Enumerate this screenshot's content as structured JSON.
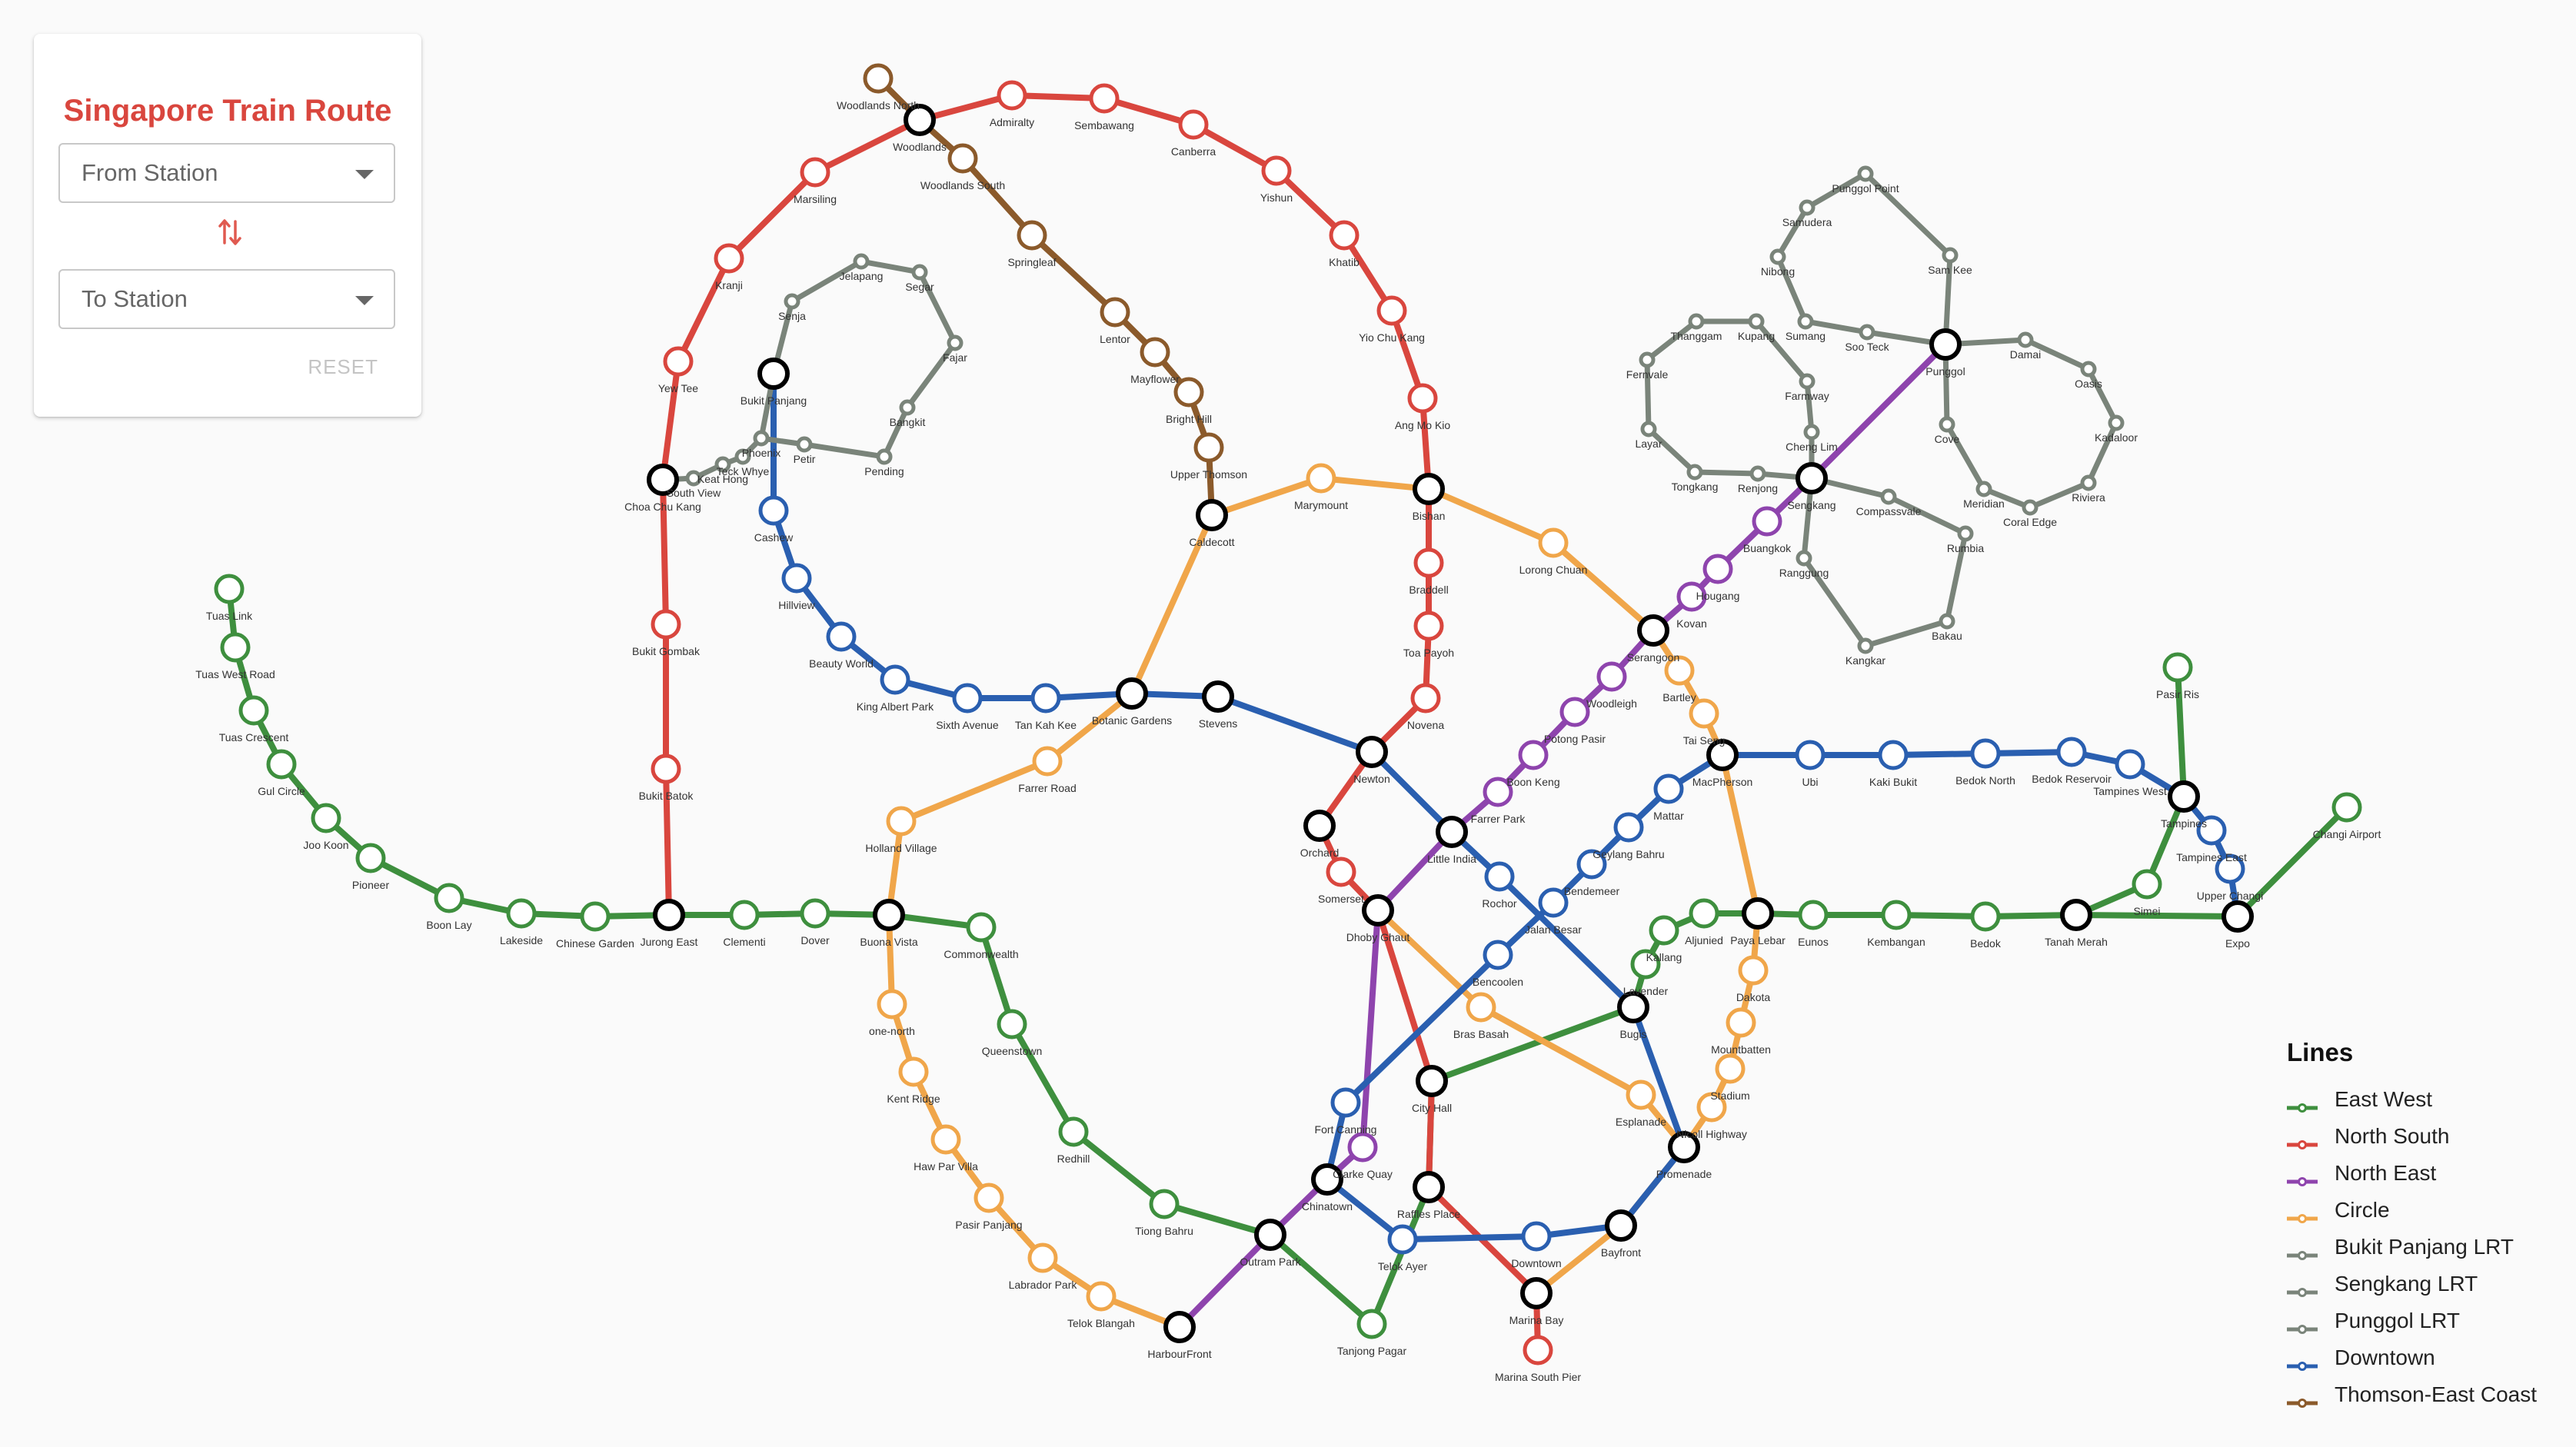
{
  "panel": {
    "title": "Singapore Train Route",
    "from_placeholder": "From Station",
    "to_placeholder": "To Station",
    "reset_label": "RESET"
  },
  "legend": {
    "title": "Lines",
    "items": [
      {
        "label": "East West",
        "color": "#3e8f3e"
      },
      {
        "label": "North South",
        "color": "#d9463e"
      },
      {
        "label": "North East",
        "color": "#8e44ad"
      },
      {
        "label": "Circle",
        "color": "#f0a64a"
      },
      {
        "label": "Bukit Panjang LRT",
        "color": "#7a847a"
      },
      {
        "label": "Sengkang LRT",
        "color": "#7a847a"
      },
      {
        "label": "Punggol LRT",
        "color": "#7a847a"
      },
      {
        "label": "Downtown",
        "color": "#2a5fb0"
      },
      {
        "label": "Thomson-East Coast",
        "color": "#8b5a2b"
      }
    ]
  },
  "stations": [
    {
      "name": "Tuas Link",
      "label": "Tuas Link",
      "line": "East West"
    },
    {
      "name": "Tuas West Road",
      "label": "Tuas West Road",
      "line": "East West"
    },
    {
      "name": "Tuas Crescent",
      "label": "Tuas Crescent",
      "line": "East West"
    },
    {
      "name": "Gul Circle",
      "label": "Gul Circle",
      "line": "East West"
    },
    {
      "name": "Joo Koon",
      "label": "Joo Koon",
      "line": "East West"
    },
    {
      "name": "Pioneer",
      "label": "Pioneer",
      "line": "East West"
    },
    {
      "name": "Boon Lay",
      "label": "Boon Lay",
      "line": "East West"
    },
    {
      "name": "Lakeside",
      "label": "Lakeside",
      "line": "East West"
    },
    {
      "name": "Chinese Garden",
      "label": "Chinese Garden",
      "line": "East West"
    },
    {
      "name": "Jurong East",
      "label": "Jurong East",
      "interchange": true
    },
    {
      "name": "Clementi",
      "label": "Clementi",
      "line": "East West"
    },
    {
      "name": "Dover",
      "label": "Dover",
      "line": "East West"
    },
    {
      "name": "Buona Vista",
      "label": "Buona Vista",
      "interchange": true
    },
    {
      "name": "Commonwealth",
      "label": "Commonwealth",
      "line": "East West"
    },
    {
      "name": "Queenstown",
      "label": "Queenstown",
      "line": "East West"
    },
    {
      "name": "Redhill",
      "label": "Redhill",
      "line": "East West"
    },
    {
      "name": "Tiong Bahru",
      "label": "Tiong Bahru",
      "line": "East West"
    },
    {
      "name": "Outram Park",
      "label": "Outram Park",
      "interchange": true
    },
    {
      "name": "Tanjong Pagar",
      "label": "Tanjong Pagar",
      "line": "East West"
    },
    {
      "name": "Raffles Place",
      "label": "Raffles Place",
      "interchange": true
    },
    {
      "name": "City Hall",
      "label": "City Hall",
      "interchange": true
    },
    {
      "name": "Bugis",
      "label": "Bugis",
      "interchange": true
    },
    {
      "name": "Lavender",
      "label": "Lavender",
      "line": "East West"
    },
    {
      "name": "Kallang",
      "label": "Kallang",
      "line": "East West"
    },
    {
      "name": "Aljunied",
      "label": "Aljunied",
      "line": "East West"
    },
    {
      "name": "Paya Lebar",
      "label": "Paya Lebar",
      "interchange": true
    },
    {
      "name": "Eunos",
      "label": "Eunos",
      "line": "East West"
    },
    {
      "name": "Kembangan",
      "label": "Kembangan",
      "line": "East West"
    },
    {
      "name": "Bedok",
      "label": "Bedok",
      "line": "East West"
    },
    {
      "name": "Tanah Merah",
      "label": "Tanah Merah",
      "interchange": true
    },
    {
      "name": "Simei",
      "label": "Simei",
      "line": "East West"
    },
    {
      "name": "Tampines",
      "label": "Tampines",
      "interchange": true
    },
    {
      "name": "Pasir Ris",
      "label": "Pasir Ris",
      "line": "East West"
    },
    {
      "name": "Expo",
      "label": "Expo",
      "interchange": true
    },
    {
      "name": "Changi Airport",
      "label": "Changi Airport",
      "line": "East West"
    },
    {
      "name": "Bukit Batok",
      "label": "Bukit Batok",
      "line": "North South"
    },
    {
      "name": "Bukit Gombak",
      "label": "Bukit Gombak",
      "line": "North South"
    },
    {
      "name": "Choa Chu Kang",
      "label": "Choa Chu Kang",
      "interchange": true
    },
    {
      "name": "Yew Tee",
      "label": "Yew Tee",
      "line": "North South"
    },
    {
      "name": "Kranji",
      "label": "Kranji",
      "line": "North South"
    },
    {
      "name": "Marsiling",
      "label": "Marsiling",
      "line": "North South"
    },
    {
      "name": "Woodlands",
      "label": "Woodlands",
      "interchange": true
    },
    {
      "name": "Admiralty",
      "label": "Admiralty",
      "line": "North South"
    },
    {
      "name": "Sembawang",
      "label": "Sembawang",
      "line": "North South"
    },
    {
      "name": "Canberra",
      "label": "Canberra",
      "line": "North South"
    },
    {
      "name": "Yishun",
      "label": "Yishun",
      "line": "North South"
    },
    {
      "name": "Khatib",
      "label": "Khatib",
      "line": "North South"
    },
    {
      "name": "Yio Chu Kang",
      "label": "Yio Chu Kang",
      "line": "North South"
    },
    {
      "name": "Ang Mo Kio",
      "label": "Ang Mo Kio",
      "line": "North South"
    },
    {
      "name": "Bishan",
      "label": "Bishan",
      "interchange": true
    },
    {
      "name": "Braddell",
      "label": "Braddell",
      "line": "North South"
    },
    {
      "name": "Toa Payoh",
      "label": "Toa Payoh",
      "line": "North South"
    },
    {
      "name": "Novena",
      "label": "Novena",
      "line": "North South"
    },
    {
      "name": "Newton",
      "label": "Newton",
      "interchange": true
    },
    {
      "name": "Orchard",
      "label": "Orchard",
      "interchange": true
    },
    {
      "name": "Somerset",
      "label": "Somerset",
      "line": "North South"
    },
    {
      "name": "Dhoby Ghaut",
      "label": "Dhoby Ghaut",
      "interchange": true
    },
    {
      "name": "Marina Bay",
      "label": "Marina Bay",
      "interchange": true
    },
    {
      "name": "Marina South Pier",
      "label": "Marina South Pier",
      "line": "North South"
    },
    {
      "name": "HarbourFront",
      "label": "HarbourFront",
      "interchange": true
    },
    {
      "name": "Chinatown",
      "label": "Chinatown",
      "interchange": true
    },
    {
      "name": "Clarke Quay",
      "label": "Clarke Quay",
      "line": "North East"
    },
    {
      "name": "Little India",
      "label": "Little India",
      "interchange": true
    },
    {
      "name": "Farrer Park",
      "label": "Farrer Park",
      "line": "North East"
    },
    {
      "name": "Boon Keng",
      "label": "Boon Keng",
      "line": "North East"
    },
    {
      "name": "Potong Pasir",
      "label": "Potong Pasir",
      "line": "North East"
    },
    {
      "name": "Woodleigh",
      "label": "Woodleigh",
      "line": "North East"
    },
    {
      "name": "Serangoon",
      "label": "Serangoon",
      "interchange": true
    },
    {
      "name": "Kovan",
      "label": "Kovan",
      "line": "North East"
    },
    {
      "name": "Hougang",
      "label": "Hougang",
      "line": "North East"
    },
    {
      "name": "Buangkok",
      "label": "Buangkok",
      "line": "North East"
    },
    {
      "name": "Sengkang",
      "label": "Sengkang",
      "interchange": true
    },
    {
      "name": "Punggol",
      "label": "Punggol",
      "interchange": true
    },
    {
      "name": "Bras Basah",
      "label": "Bras Basah",
      "line": "Circle"
    },
    {
      "name": "Esplanade",
      "label": "Esplanade",
      "line": "Circle"
    },
    {
      "name": "Promenade",
      "label": "Promenade",
      "interchange": true
    },
    {
      "name": "Nicoll Highway",
      "label": "Nicoll Highway",
      "line": "Circle"
    },
    {
      "name": "Stadium",
      "label": "Stadium",
      "line": "Circle"
    },
    {
      "name": "Mountbatten",
      "label": "Mountbatten",
      "line": "Circle"
    },
    {
      "name": "Dakota",
      "label": "Dakota",
      "line": "Circle"
    },
    {
      "name": "MacPherson",
      "label": "MacPherson",
      "interchange": true
    },
    {
      "name": "Tai Seng",
      "label": "Tai Seng",
      "line": "Circle"
    },
    {
      "name": "Bartley",
      "label": "Bartley",
      "line": "Circle"
    },
    {
      "name": "Lorong Chuan",
      "label": "Lorong Chuan",
      "line": "Circle"
    },
    {
      "name": "Marymount",
      "label": "Marymount",
      "line": "Circle"
    },
    {
      "name": "Caldecott",
      "label": "Caldecott",
      "interchange": true
    },
    {
      "name": "Botanic Gardens",
      "label": "Botanic Gardens",
      "interchange": true
    },
    {
      "name": "Farrer Road",
      "label": "Farrer Road",
      "line": "Circle"
    },
    {
      "name": "Holland Village",
      "label": "Holland Village",
      "line": "Circle"
    },
    {
      "name": "one-north",
      "label": "one-north",
      "line": "Circle"
    },
    {
      "name": "Kent Ridge",
      "label": "Kent Ridge",
      "line": "Circle"
    },
    {
      "name": "Haw Par Villa",
      "label": "Haw Par Villa",
      "line": "Circle"
    },
    {
      "name": "Pasir Panjang",
      "label": "Pasir Panjang",
      "line": "Circle"
    },
    {
      "name": "Labrador Park",
      "label": "Labrador Park",
      "line": "Circle"
    },
    {
      "name": "Telok Blangah",
      "label": "Telok Blangah",
      "line": "Circle"
    },
    {
      "name": "Bayfront",
      "label": "Bayfront",
      "interchange": true
    },
    {
      "name": "Bukit Panjang",
      "label": "Bukit Panjang",
      "interchange": true
    },
    {
      "name": "Cashew",
      "label": "Cashew",
      "line": "Downtown"
    },
    {
      "name": "Hillview",
      "label": "Hillview",
      "line": "Downtown"
    },
    {
      "name": "Beauty World",
      "label": "Beauty World",
      "line": "Downtown"
    },
    {
      "name": "King Albert Park",
      "label": "King Albert Park",
      "line": "Downtown"
    },
    {
      "name": "Sixth Avenue",
      "label": "Sixth Avenue",
      "line": "Downtown"
    },
    {
      "name": "Tan Kah Kee",
      "label": "Tan Kah Kee",
      "line": "Downtown"
    },
    {
      "name": "Stevens",
      "label": "Stevens",
      "interchange": true
    },
    {
      "name": "Rochor",
      "label": "Rochor",
      "line": "Downtown"
    },
    {
      "name": "Bencoolen",
      "label": "Bencoolen",
      "line": "Downtown"
    },
    {
      "name": "Fort Canning",
      "label": "Fort Canning",
      "line": "Downtown"
    },
    {
      "name": "Telok Ayer",
      "label": "Telok Ayer",
      "line": "Downtown"
    },
    {
      "name": "Downtown",
      "label": "Downtown",
      "line": "Downtown"
    },
    {
      "name": "Jalan Besar",
      "label": "Jalan Besar",
      "line": "Downtown"
    },
    {
      "name": "Bendemeer",
      "label": "Bendemeer",
      "line": "Downtown"
    },
    {
      "name": "Geylang Bahru",
      "label": "Geylang Bahru",
      "line": "Downtown"
    },
    {
      "name": "Mattar",
      "label": "Mattar",
      "line": "Downtown"
    },
    {
      "name": "Ubi",
      "label": "Ubi",
      "line": "Downtown"
    },
    {
      "name": "Kaki Bukit",
      "label": "Kaki Bukit",
      "line": "Downtown"
    },
    {
      "name": "Bedok North",
      "label": "Bedok North",
      "line": "Downtown"
    },
    {
      "name": "Bedok Reservoir",
      "label": "Bedok Reservoir",
      "line": "Downtown"
    },
    {
      "name": "Tampines West",
      "label": "Tampines West",
      "line": "Downtown"
    },
    {
      "name": "Tampines East",
      "label": "Tampines East",
      "line": "Downtown"
    },
    {
      "name": "Upper Changi",
      "label": "Upper Changi",
      "line": "Downtown"
    },
    {
      "name": "Woodlands North",
      "label": "Woodlands North",
      "line": "Thomson-East Coast"
    },
    {
      "name": "Woodlands South",
      "label": "Woodlands South",
      "line": "Thomson-East Coast"
    },
    {
      "name": "Springleaf",
      "label": "Springleaf",
      "line": "Thomson-East Coast"
    },
    {
      "name": "Lentor",
      "label": "Lentor",
      "line": "Thomson-East Coast"
    },
    {
      "name": "Mayflower",
      "label": "Mayflower",
      "line": "Thomson-East Coast"
    },
    {
      "name": "Bright Hill",
      "label": "Bright Hill",
      "line": "Thomson-East Coast"
    },
    {
      "name": "Upper Thomson",
      "label": "Upper Thomson",
      "line": "Thomson-East Coast"
    },
    {
      "name": "South View",
      "label": "South View",
      "line": "Bukit Panjang LRT"
    },
    {
      "name": "Keat Hong",
      "label": "Keat Hong",
      "line": "Bukit Panjang LRT"
    },
    {
      "name": "Teck Whye",
      "label": "Teck Whye",
      "line": "Bukit Panjang LRT"
    },
    {
      "name": "Phoenix",
      "label": "Phoenix",
      "line": "Bukit Panjang LRT"
    },
    {
      "name": "Petir",
      "label": "Petir",
      "line": "Bukit Panjang LRT"
    },
    {
      "name": "Pending",
      "label": "Pending",
      "line": "Bukit Panjang LRT"
    },
    {
      "name": "Bangkit",
      "label": "Bangkit",
      "line": "Bukit Panjang LRT"
    },
    {
      "name": "Fajar",
      "label": "Fajar",
      "line": "Bukit Panjang LRT"
    },
    {
      "name": "Segar",
      "label": "Segar",
      "line": "Bukit Panjang LRT"
    },
    {
      "name": "Jelapang",
      "label": "Jelapang",
      "line": "Bukit Panjang LRT"
    },
    {
      "name": "Senja",
      "label": "Senja",
      "line": "Bukit Panjang LRT"
    },
    {
      "name": "Compassvale",
      "label": "Compassvale",
      "line": "Sengkang LRT"
    },
    {
      "name": "Rumbia",
      "label": "Rumbia",
      "line": "Sengkang LRT"
    },
    {
      "name": "Bakau",
      "label": "Bakau",
      "line": "Sengkang LRT"
    },
    {
      "name": "Kangkar",
      "label": "Kangkar",
      "line": "Sengkang LRT"
    },
    {
      "name": "Ranggung",
      "label": "Ranggung",
      "line": "Sengkang LRT"
    },
    {
      "name": "Cheng Lim",
      "label": "Cheng Lim",
      "line": "Sengkang LRT"
    },
    {
      "name": "Farmway",
      "label": "Farmway",
      "line": "Sengkang LRT"
    },
    {
      "name": "Kupang",
      "label": "Kupang",
      "line": "Sengkang LRT"
    },
    {
      "name": "Thanggam",
      "label": "Thanggam",
      "line": "Sengkang LRT"
    },
    {
      "name": "Fernvale",
      "label": "Fernvale",
      "line": "Sengkang LRT"
    },
    {
      "name": "Layar",
      "label": "Layar",
      "line": "Sengkang LRT"
    },
    {
      "name": "Tongkang",
      "label": "Tongkang",
      "line": "Sengkang LRT"
    },
    {
      "name": "Renjong",
      "label": "Renjong",
      "line": "Sengkang LRT"
    },
    {
      "name": "Cove",
      "label": "Cove",
      "line": "Punggol LRT"
    },
    {
      "name": "Meridian",
      "label": "Meridian",
      "line": "Punggol LRT"
    },
    {
      "name": "Coral Edge",
      "label": "Coral Edge",
      "line": "Punggol LRT"
    },
    {
      "name": "Riviera",
      "label": "Riviera",
      "line": "Punggol LRT"
    },
    {
      "name": "Kadaloor",
      "label": "Kadaloor",
      "line": "Punggol LRT"
    },
    {
      "name": "Oasis",
      "label": "Oasis",
      "line": "Punggol LRT"
    },
    {
      "name": "Damai",
      "label": "Damai",
      "line": "Punggol LRT"
    },
    {
      "name": "Sam Kee",
      "label": "Sam Kee",
      "line": "Punggol LRT"
    },
    {
      "name": "Punggol Point",
      "label": "Punggol Point",
      "line": "Punggol LRT"
    },
    {
      "name": "Samudera",
      "label": "Samudera",
      "line": "Punggol LRT"
    },
    {
      "name": "Nibong",
      "label": "Nibong",
      "line": "Punggol LRT"
    },
    {
      "name": "Sumang",
      "label": "Sumang",
      "line": "Punggol LRT"
    },
    {
      "name": "Soo Teck",
      "label": "Soo Teck",
      "line": "Punggol LRT"
    }
  ]
}
